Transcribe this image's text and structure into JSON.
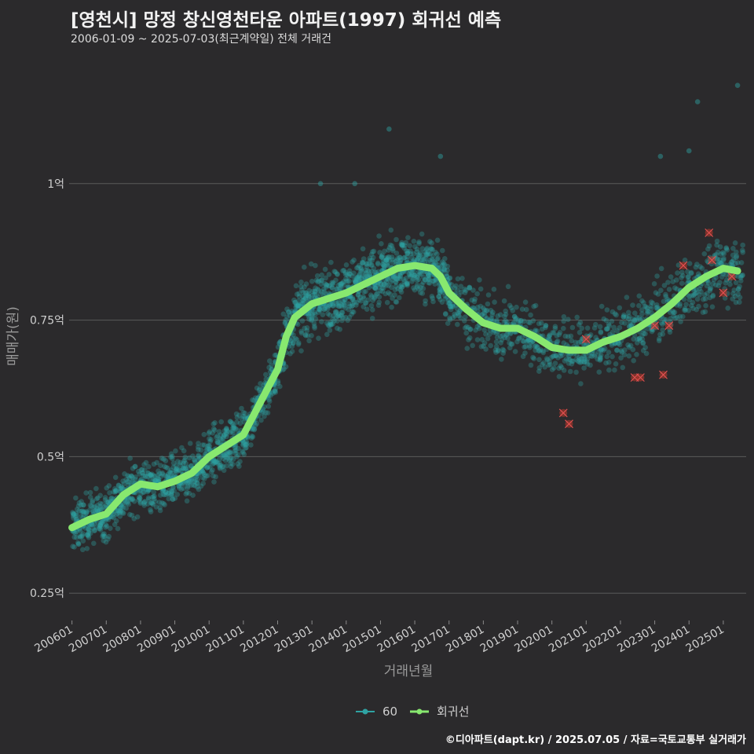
{
  "title": "[영천시] 망정 창신영천타운 아파트(1997) 회귀선 예측",
  "subtitle": "2006-01-09 ~ 2025-07-03(최근계약일) 전체 거래건",
  "footer": "©디아파트(dapt.kr) / 2025.07.05 / 자료=국토교통부 실거래가",
  "colors": {
    "background": "#2b2a2c",
    "points": "#2fa3a3",
    "regression": "#88e86f",
    "highlight": "#c0392b",
    "grid": "#5a5a5a"
  },
  "chart_data": {
    "type": "scatter",
    "title": "[영천시] 망정 창신영천타운 아파트(1997) 회귀선 예측",
    "subtitle": "2006-01-09 ~ 2025-07-03(최근계약일) 전체 거래건",
    "xlabel": "거래년월",
    "ylabel": "매매가(원)",
    "x_ticks": [
      "200601",
      "200701",
      "200801",
      "200901",
      "201001",
      "201101",
      "201201",
      "201301",
      "201401",
      "201501",
      "201601",
      "201701",
      "201801",
      "201901",
      "202001",
      "202101",
      "202201",
      "202301",
      "202401",
      "202501"
    ],
    "xlim": [
      "2005-12",
      "2025-09"
    ],
    "y_ticks": [
      0.25,
      0.5,
      0.75,
      1.0
    ],
    "y_tick_labels": [
      "0.25억",
      "0.5억",
      "0.75억",
      "1억"
    ],
    "ylim": [
      0.2,
      1.25
    ],
    "grid": "horizontal",
    "legend_position": "bottom",
    "legend": [
      {
        "name": "60",
        "type": "points"
      },
      {
        "name": "회귀선",
        "type": "line"
      }
    ],
    "regression_line": [
      [
        "2006-01",
        0.37
      ],
      [
        "2006-07",
        0.385
      ],
      [
        "2007-01",
        0.395
      ],
      [
        "2007-07",
        0.43
      ],
      [
        "2008-01",
        0.45
      ],
      [
        "2008-07",
        0.445
      ],
      [
        "2009-01",
        0.455
      ],
      [
        "2009-07",
        0.47
      ],
      [
        "2010-01",
        0.5
      ],
      [
        "2010-07",
        0.52
      ],
      [
        "2011-01",
        0.54
      ],
      [
        "2011-07",
        0.6
      ],
      [
        "2012-01",
        0.66
      ],
      [
        "2012-04",
        0.72
      ],
      [
        "2012-07",
        0.755
      ],
      [
        "2013-01",
        0.78
      ],
      [
        "2013-07",
        0.79
      ],
      [
        "2014-01",
        0.8
      ],
      [
        "2014-07",
        0.815
      ],
      [
        "2015-01",
        0.83
      ],
      [
        "2015-07",
        0.845
      ],
      [
        "2016-01",
        0.85
      ],
      [
        "2016-07",
        0.845
      ],
      [
        "2016-10",
        0.83
      ],
      [
        "2017-01",
        0.8
      ],
      [
        "2017-07",
        0.77
      ],
      [
        "2018-01",
        0.745
      ],
      [
        "2018-07",
        0.735
      ],
      [
        "2019-01",
        0.735
      ],
      [
        "2019-07",
        0.72
      ],
      [
        "2020-01",
        0.7
      ],
      [
        "2020-07",
        0.695
      ],
      [
        "2021-01",
        0.695
      ],
      [
        "2021-07",
        0.71
      ],
      [
        "2022-01",
        0.72
      ],
      [
        "2022-07",
        0.735
      ],
      [
        "2023-01",
        0.755
      ],
      [
        "2023-07",
        0.78
      ],
      [
        "2024-01",
        0.81
      ],
      [
        "2024-07",
        0.83
      ],
      [
        "2025-01",
        0.845
      ],
      [
        "2025-06",
        0.84
      ]
    ],
    "highlighted_points": [
      [
        "2020-05",
        0.58
      ],
      [
        "2020-07",
        0.56
      ],
      [
        "2021-01",
        0.715
      ],
      [
        "2022-06",
        0.645
      ],
      [
        "2022-08",
        0.645
      ],
      [
        "2023-01",
        0.74
      ],
      [
        "2023-04",
        0.65
      ],
      [
        "2023-06",
        0.74
      ],
      [
        "2023-11",
        0.85
      ],
      [
        "2024-08",
        0.91
      ],
      [
        "2024-09",
        0.86
      ],
      [
        "2025-01",
        0.8
      ],
      [
        "2025-04",
        0.83
      ]
    ],
    "scatter_points": {
      "description_of_density": "monthly transactions scattered around the regression line",
      "outliers": [
        [
          "2015-04",
          1.1
        ],
        [
          "2016-10",
          1.05
        ],
        [
          "2024-04",
          1.15
        ],
        [
          "2025-06",
          1.18
        ],
        [
          "2024-01",
          1.06
        ],
        [
          "2023-03",
          1.05
        ],
        [
          "2013-04",
          1.0
        ],
        [
          "2014-04",
          1.0
        ]
      ]
    }
  }
}
